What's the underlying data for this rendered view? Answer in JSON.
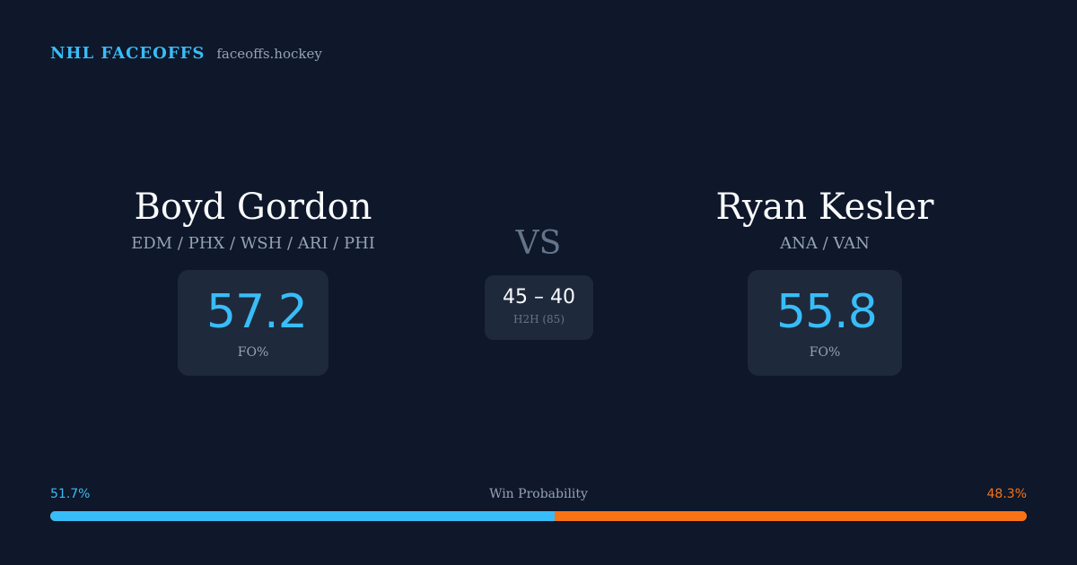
{
  "brand": {
    "name": "NHL FACEOFFS",
    "url": "faceoffs.hockey",
    "accent": "#38bdf8"
  },
  "players": {
    "left": {
      "name": "Boyd Gordon",
      "teams": "EDM / PHX / WSH / ARI / PHI",
      "fo_pct": "57.2",
      "fo_label": "FO%"
    },
    "right": {
      "name": "Ryan Kesler",
      "teams": "ANA / VAN",
      "fo_pct": "55.8",
      "fo_label": "FO%"
    }
  },
  "vs": "VS",
  "h2h": {
    "score": "45 – 40",
    "label": "H2H (85)"
  },
  "win_probability": {
    "title": "Win Probability",
    "left_label": "51.7%",
    "right_label": "48.3%",
    "left_value": 51.7,
    "right_value": 48.3,
    "left_color": "#38bdf8",
    "right_color": "#f97316"
  }
}
